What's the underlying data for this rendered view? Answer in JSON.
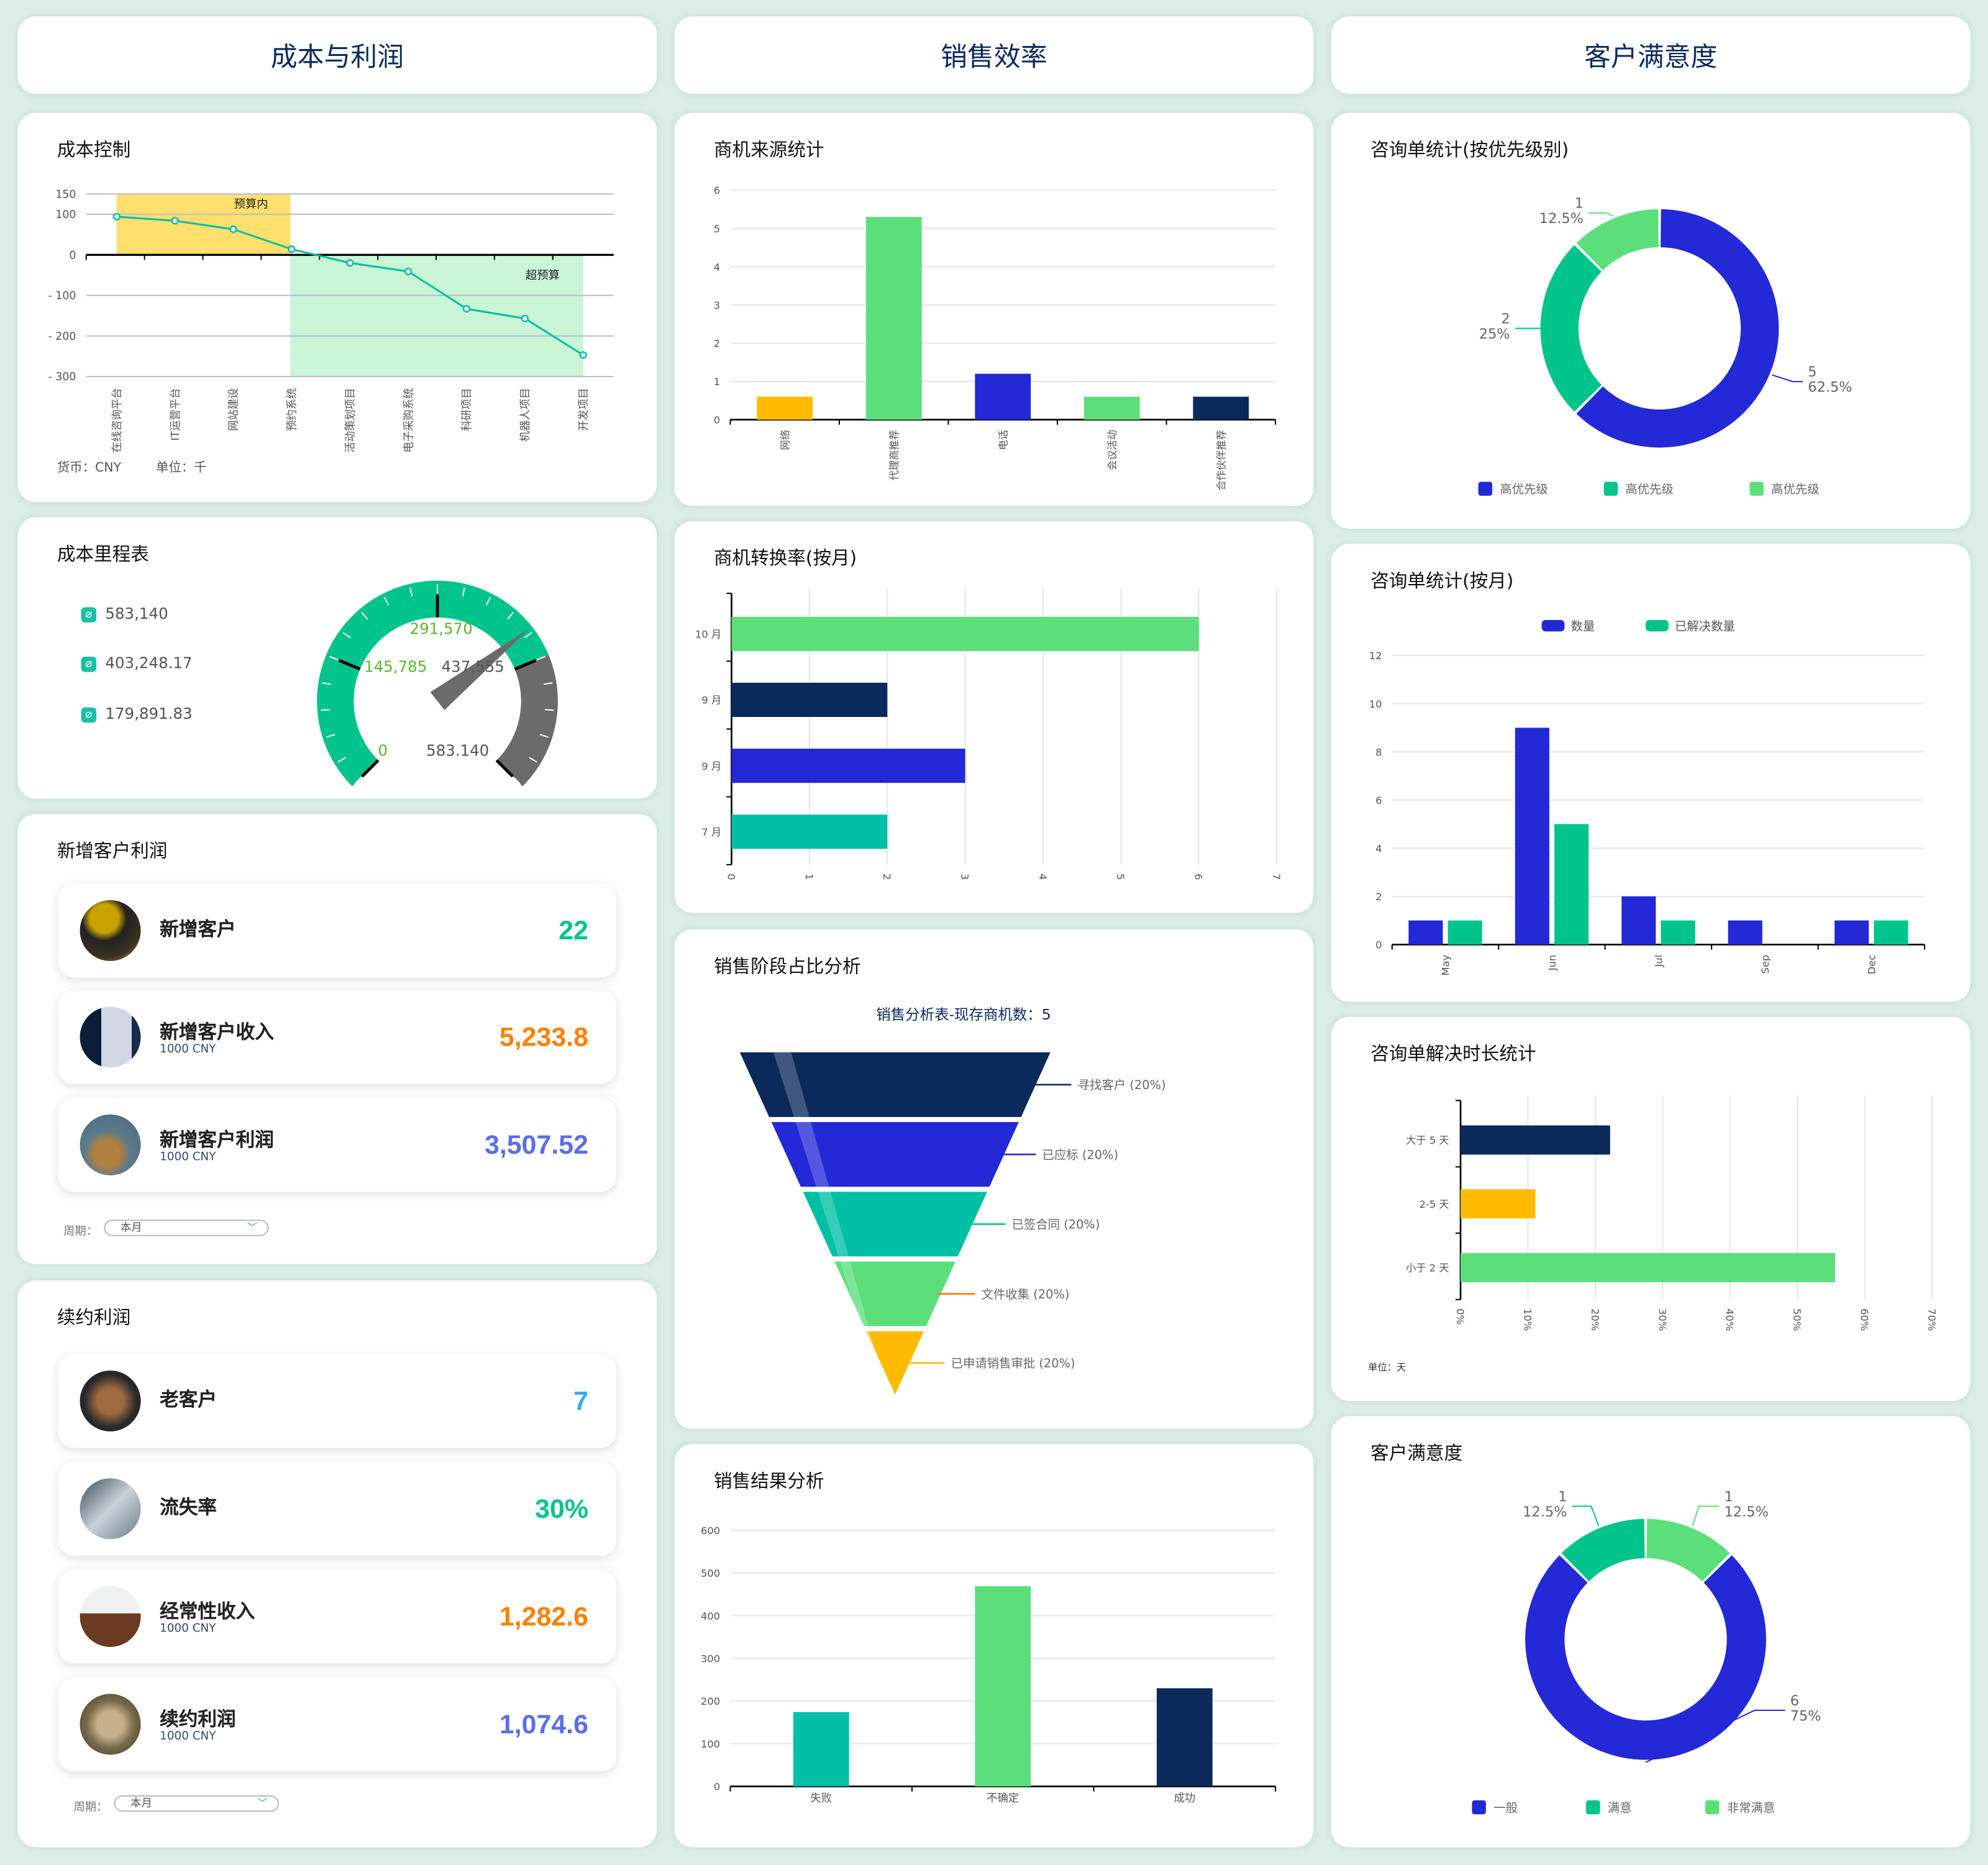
{
  "headers": [
    "成本与利润",
    "销售效率",
    "客户满意度"
  ],
  "cost_control": {
    "title": "成本控制",
    "currency": "货币：CNY",
    "unit": "单位：千",
    "band_in": "预算内",
    "band_over": "超预算"
  },
  "milestone": {
    "title": "成本里程表",
    "items": [
      "583,140",
      "403,248.17",
      "179,891.83"
    ],
    "gauge_labels": [
      "0",
      "145,785",
      "291,570",
      "437,555",
      "583.140"
    ],
    "gauge_max": 583140,
    "gauge_value": 403248.17,
    "gauge_green_until": 437555,
    "colors": {
      "green": "#00c48c",
      "gray": "#6b6b6b",
      "label_green": "#5cb82a"
    }
  },
  "new_customers": {
    "title": "新增客户利润",
    "rows": [
      {
        "label": "新增客户",
        "sub": "",
        "value": "22",
        "color": "#00c48c"
      },
      {
        "label": "新增客户收入",
        "sub": "1000 CNY",
        "value": "5,233.8",
        "color": "#ff8000"
      },
      {
        "label": "新增客户利润",
        "sub": "1000 CNY",
        "value": "3,507.52",
        "color": "#5b6ee8"
      }
    ],
    "period_label": "周期：",
    "period_value": "本月"
  },
  "renewal": {
    "title": "续约利润",
    "rows": [
      {
        "label": "老客户",
        "sub": "",
        "value": "7",
        "color": "#3aa8f0"
      },
      {
        "label": "流失率",
        "sub": "",
        "value": "30%",
        "color": "#00c48c"
      },
      {
        "label": "经常性收入",
        "sub": "1000 CNY",
        "value": "1,282.6",
        "color": "#ff8000"
      },
      {
        "label": "续约利润",
        "sub": "1000 CNY",
        "value": "1,074.6",
        "color": "#5b6ee8"
      }
    ],
    "period_label": "周期：",
    "period_value": "本月"
  },
  "titles": {
    "source": "商机来源统计",
    "conversion": "商机转换率(按月)",
    "funnel": "销售阶段占比分析",
    "result": "销售结果分析",
    "priority": "咨询单统计(按优先级别)",
    "monthly": "咨询单统计(按月)",
    "resolution": "咨询单解决时长统计",
    "satisfaction": "客户满意度"
  },
  "chart_data": [
    {
      "id": "cost",
      "type": "line",
      "categories": [
        "在线咨询平台",
        "IT运营平台",
        "网站建设",
        "预约系统",
        "活动策划项目",
        "电子采购系统",
        "科研项目",
        "机器人项目",
        "开发项目"
      ],
      "values": [
        94,
        84,
        63,
        14,
        -20,
        -41,
        -133,
        -157,
        -247
      ],
      "yticks": [
        "150",
        "100",
        "0",
        "- 100",
        "- 200",
        "- 300"
      ],
      "ylim": [
        -300,
        150
      ],
      "color": "#00bfa0"
    },
    {
      "id": "source",
      "type": "bar",
      "categories": [
        "网络",
        "代理商推荐",
        "电话",
        "会议活动",
        "合作伙伴推荐"
      ],
      "values": [
        0.6,
        5.3,
        1.2,
        0.6,
        0.6
      ],
      "colors": [
        "#ffbb00",
        "#5cdf7b",
        "#2329d6",
        "#5cdf7b",
        "#0b2a5b"
      ],
      "yticks": [
        "0",
        "1",
        "2",
        "3",
        "4",
        "5",
        "6"
      ],
      "ylim": [
        0,
        6
      ]
    },
    {
      "id": "conversion",
      "type": "bar",
      "orientation": "horizontal",
      "categories": [
        "10 月",
        "9 月",
        "9 月",
        "7 月"
      ],
      "values": [
        6,
        2,
        3,
        2
      ],
      "colors": [
        "#5cdf7b",
        "#0b2a5b",
        "#2329d6",
        "#00bfa5"
      ],
      "xticks": [
        "0",
        "1",
        "2",
        "3",
        "4",
        "5",
        "6",
        "7"
      ],
      "xlim": [
        0,
        7
      ]
    },
    {
      "id": "funnel",
      "type": "funnel",
      "title": "销售分析表-现存商机数：5",
      "stages": [
        "寻找客户 (20%)",
        "已应标 (20%)",
        "已签合同 (20%)",
        "文件收集 (20%)",
        "已申请销售审批 (20%)"
      ],
      "values": [
        20,
        20,
        20,
        20,
        20
      ],
      "colors": [
        "#0b2a5b",
        "#2329d6",
        "#00bfa5",
        "#5cdf7b",
        "#ffbb00"
      ],
      "line_colors": [
        "#0b2a5b",
        "#2329d6",
        "#00c48c",
        "#ff8000",
        "#ffbb00"
      ]
    },
    {
      "id": "result",
      "type": "bar",
      "categories": [
        "失败",
        "不确定",
        "成功"
      ],
      "values": [
        174,
        469,
        230
      ],
      "colors": [
        "#00bfa5",
        "#5cdf7b",
        "#0b2a5b"
      ],
      "yticks": [
        "0",
        "100",
        "200",
        "300",
        "400",
        "500",
        "600"
      ],
      "ylim": [
        0,
        600
      ]
    },
    {
      "id": "priority",
      "type": "pie",
      "donut": true,
      "slices": [
        {
          "legend": "高优先级",
          "value": 5,
          "pct": "62.5%",
          "color": "#2329d6"
        },
        {
          "legend": "高优先级",
          "value": 2,
          "pct": "25%",
          "color": "#00c48c"
        },
        {
          "legend": "高优先级",
          "value": 1,
          "pct": "12.5%",
          "color": "#5cdf7b"
        }
      ]
    },
    {
      "id": "monthly",
      "type": "bar",
      "categories": [
        "May",
        "Jun",
        "Jul",
        "Sep",
        "Dec"
      ],
      "series": [
        {
          "name": "数量",
          "values": [
            1,
            9,
            2,
            1,
            1
          ],
          "color": "#2329d6"
        },
        {
          "name": "已解决数量",
          "values": [
            1,
            5,
            1,
            0,
            1
          ],
          "color": "#00c48c"
        }
      ],
      "yticks": [
        "0",
        "2",
        "4",
        "6",
        "8",
        "10",
        "12"
      ],
      "ylim": [
        0,
        12
      ],
      "legend": "top"
    },
    {
      "id": "resolution",
      "type": "bar",
      "orientation": "horizontal",
      "categories": [
        "大于 5 天",
        "2-5 天",
        "小于 2 天"
      ],
      "values": [
        22.2,
        11.1,
        55.6
      ],
      "colors": [
        "#0b2a5b",
        "#ffbb00",
        "#5cdf7b"
      ],
      "xticks": [
        "0%",
        "10%",
        "20%",
        "30%",
        "40%",
        "50%",
        "60%",
        "70%"
      ],
      "xlim": [
        0,
        70
      ],
      "unit": "单位：天"
    },
    {
      "id": "satisfaction",
      "type": "pie",
      "donut": true,
      "slices": [
        {
          "legend": "非常满意",
          "value": 1,
          "pct": "12.5%",
          "color": "#5cdf7b"
        },
        {
          "legend": "一般",
          "value": 6,
          "pct": "75%",
          "color": "#2329d6"
        },
        {
          "legend": "满意",
          "value": 1,
          "pct": "12.5%",
          "color": "#00c48c"
        }
      ],
      "legend_order": [
        "一般",
        "满意",
        "非常满意"
      ]
    }
  ]
}
